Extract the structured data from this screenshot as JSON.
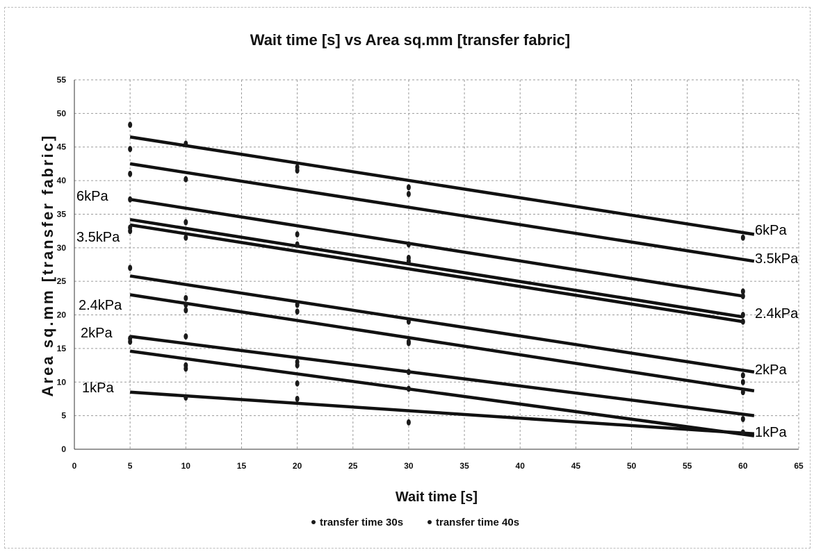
{
  "chart_data": {
    "type": "scatter",
    "title": "Wait time [s] vs Area sq.mm [transfer fabric]",
    "xlabel": "Wait time [s]",
    "ylabel": "Area sq.mm [transfer fabric]",
    "xlim": [
      0,
      65
    ],
    "ylim": [
      0,
      55
    ],
    "x_ticks": [
      "0",
      "5",
      "10",
      "15",
      "20",
      "25",
      "30",
      "35",
      "40",
      "45",
      "50",
      "55",
      "60",
      "65"
    ],
    "y_ticks": [
      "0",
      "5",
      "10",
      "15",
      "20",
      "25",
      "30",
      "35",
      "40",
      "45",
      "50",
      "55"
    ],
    "grid": true,
    "legend_position": "bottom",
    "series": [
      {
        "name": "transfer time 30s",
        "color": "#1a1a1a",
        "points": [
          [
            5,
            48.3
          ],
          [
            5,
            44.7
          ],
          [
            5,
            41.0
          ],
          [
            5,
            37.2
          ],
          [
            5,
            33.0
          ],
          [
            5,
            27.0
          ],
          [
            5,
            16.0
          ],
          [
            10,
            45.5
          ],
          [
            10,
            40.2
          ],
          [
            10,
            33.8
          ],
          [
            10,
            22.5
          ],
          [
            10,
            21.5
          ],
          [
            10,
            16.8
          ],
          [
            10,
            12.5
          ],
          [
            10,
            7.7
          ],
          [
            20,
            42.0
          ],
          [
            20,
            32.0
          ],
          [
            20,
            30.5
          ],
          [
            20,
            21.5
          ],
          [
            20,
            20.5
          ],
          [
            20,
            13.0
          ],
          [
            20,
            9.8
          ],
          [
            20,
            7.5
          ],
          [
            30,
            39.0
          ],
          [
            30,
            30.5
          ],
          [
            30,
            28.0
          ],
          [
            30,
            19.0
          ],
          [
            30,
            16.0
          ],
          [
            30,
            11.5
          ],
          [
            30,
            9.0
          ],
          [
            30,
            4.0
          ],
          [
            60,
            31.5
          ],
          [
            60,
            23.5
          ],
          [
            60,
            19.0
          ],
          [
            60,
            11.0
          ],
          [
            60,
            10.0
          ],
          [
            60,
            8.5
          ],
          [
            60,
            4.5
          ],
          [
            60,
            2.5
          ]
        ]
      },
      {
        "name": "transfer time 40s",
        "color": "#1a1a1a",
        "points": [
          [
            5,
            32.5
          ],
          [
            5,
            16.5
          ],
          [
            10,
            31.5
          ],
          [
            10,
            20.7
          ],
          [
            10,
            12.0
          ],
          [
            20,
            41.5
          ],
          [
            20,
            12.5
          ],
          [
            30,
            38.0
          ],
          [
            30,
            15.8
          ],
          [
            30,
            28.5
          ],
          [
            60,
            22.8
          ],
          [
            60,
            20.0
          ]
        ]
      }
    ],
    "trendlines": [
      {
        "label": "6kPa",
        "x": [
          5,
          61
        ],
        "y": [
          46.5,
          32.0
        ]
      },
      {
        "label": "3.5kPa",
        "x": [
          5,
          61
        ],
        "y": [
          42.5,
          28.0
        ]
      },
      {
        "label": "",
        "x": [
          5,
          60
        ],
        "y": [
          37.2,
          22.8
        ]
      },
      {
        "label": "2.4kPa",
        "x": [
          5,
          60
        ],
        "y": [
          34.2,
          19.7
        ]
      },
      {
        "label": "",
        "x": [
          5,
          60
        ],
        "y": [
          33.4,
          19.0
        ]
      },
      {
        "label": "2kPa",
        "x": [
          5,
          61
        ],
        "y": [
          25.8,
          11.5
        ]
      },
      {
        "label": "",
        "x": [
          5,
          61
        ],
        "y": [
          23.0,
          8.7
        ]
      },
      {
        "label": "",
        "x": [
          5,
          61
        ],
        "y": [
          16.8,
          5.0
        ]
      },
      {
        "label": "",
        "x": [
          5,
          61
        ],
        "y": [
          14.6,
          2.0
        ]
      },
      {
        "label": "1kPa",
        "x": [
          5,
          61
        ],
        "y": [
          8.5,
          2.3
        ]
      }
    ],
    "annotations_left": [
      "6kPa",
      "3.5kPa",
      "2.4kPa",
      "2kPa",
      "1kPa"
    ],
    "annotations_right": [
      "6kPa",
      "3.5kPa",
      "2.4kPa",
      "2kPa",
      "1kPa"
    ]
  }
}
